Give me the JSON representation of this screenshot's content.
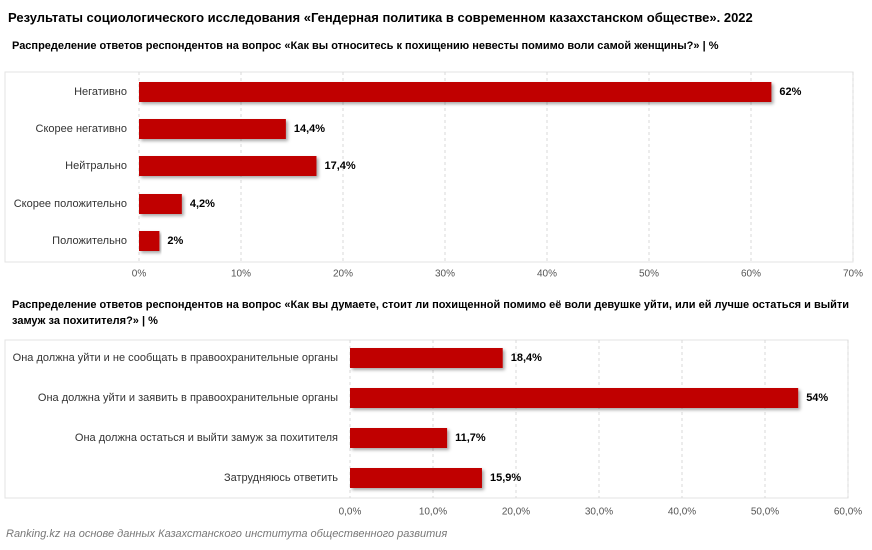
{
  "title": "Результаты социологического исследования «Гендерная политика в современном казахстанском обществе». 2022",
  "source": "Ranking.kz на основе данных Казахстанского института общественного развития",
  "chart_data": [
    {
      "type": "bar",
      "orientation": "horizontal",
      "title": "Распределение ответов респондентов на вопрос «Как вы относитесь к похищению невесты помимо воли самой женщины?» | %",
      "categories": [
        "Негативно",
        "Скорее негативно",
        "Нейтрально",
        "Скорее положительно",
        "Положительно"
      ],
      "values": [
        62,
        14.4,
        17.4,
        4.2,
        2
      ],
      "value_labels": [
        "62%",
        "14,4%",
        "17,4%",
        "4,2%",
        "2%"
      ],
      "color": "#c00000",
      "xlim": [
        0,
        70
      ],
      "xticks": [
        {
          "value": 0,
          "label": "0%"
        },
        {
          "value": 10,
          "label": "10%"
        },
        {
          "value": 20,
          "label": "20%"
        },
        {
          "value": 30,
          "label": "30%"
        },
        {
          "value": 40,
          "label": "40%"
        },
        {
          "value": 50,
          "label": "50%"
        },
        {
          "value": 60,
          "label": "60%"
        },
        {
          "value": 70,
          "label": "70%"
        }
      ],
      "grid": true
    },
    {
      "type": "bar",
      "orientation": "horizontal",
      "title": "Распределение ответов респондентов на вопрос «Как вы думаете, стоит ли похищенной помимо её воли девушке уйти, или ей лучше остаться и выйти замуж за похитителя?» | %",
      "categories": [
        "Она должна уйти и не сообщать в правоохранительные органы",
        "Она должна уйти и заявить в правоохранительные органы",
        "Она должна остаться и выйти замуж за похитителя",
        "Затрудняюсь ответить"
      ],
      "values": [
        18.4,
        54,
        11.7,
        15.9
      ],
      "value_labels": [
        "18,4%",
        "54%",
        "11,7%",
        "15,9%"
      ],
      "color": "#c00000",
      "xlim": [
        0,
        60
      ],
      "xticks": [
        {
          "value": 0,
          "label": "0,0%"
        },
        {
          "value": 10,
          "label": "10,0%"
        },
        {
          "value": 20,
          "label": "20,0%"
        },
        {
          "value": 30,
          "label": "30,0%"
        },
        {
          "value": 40,
          "label": "40,0%"
        },
        {
          "value": 50,
          "label": "50,0%"
        },
        {
          "value": 60,
          "label": "60,0%"
        }
      ],
      "grid": true
    }
  ]
}
